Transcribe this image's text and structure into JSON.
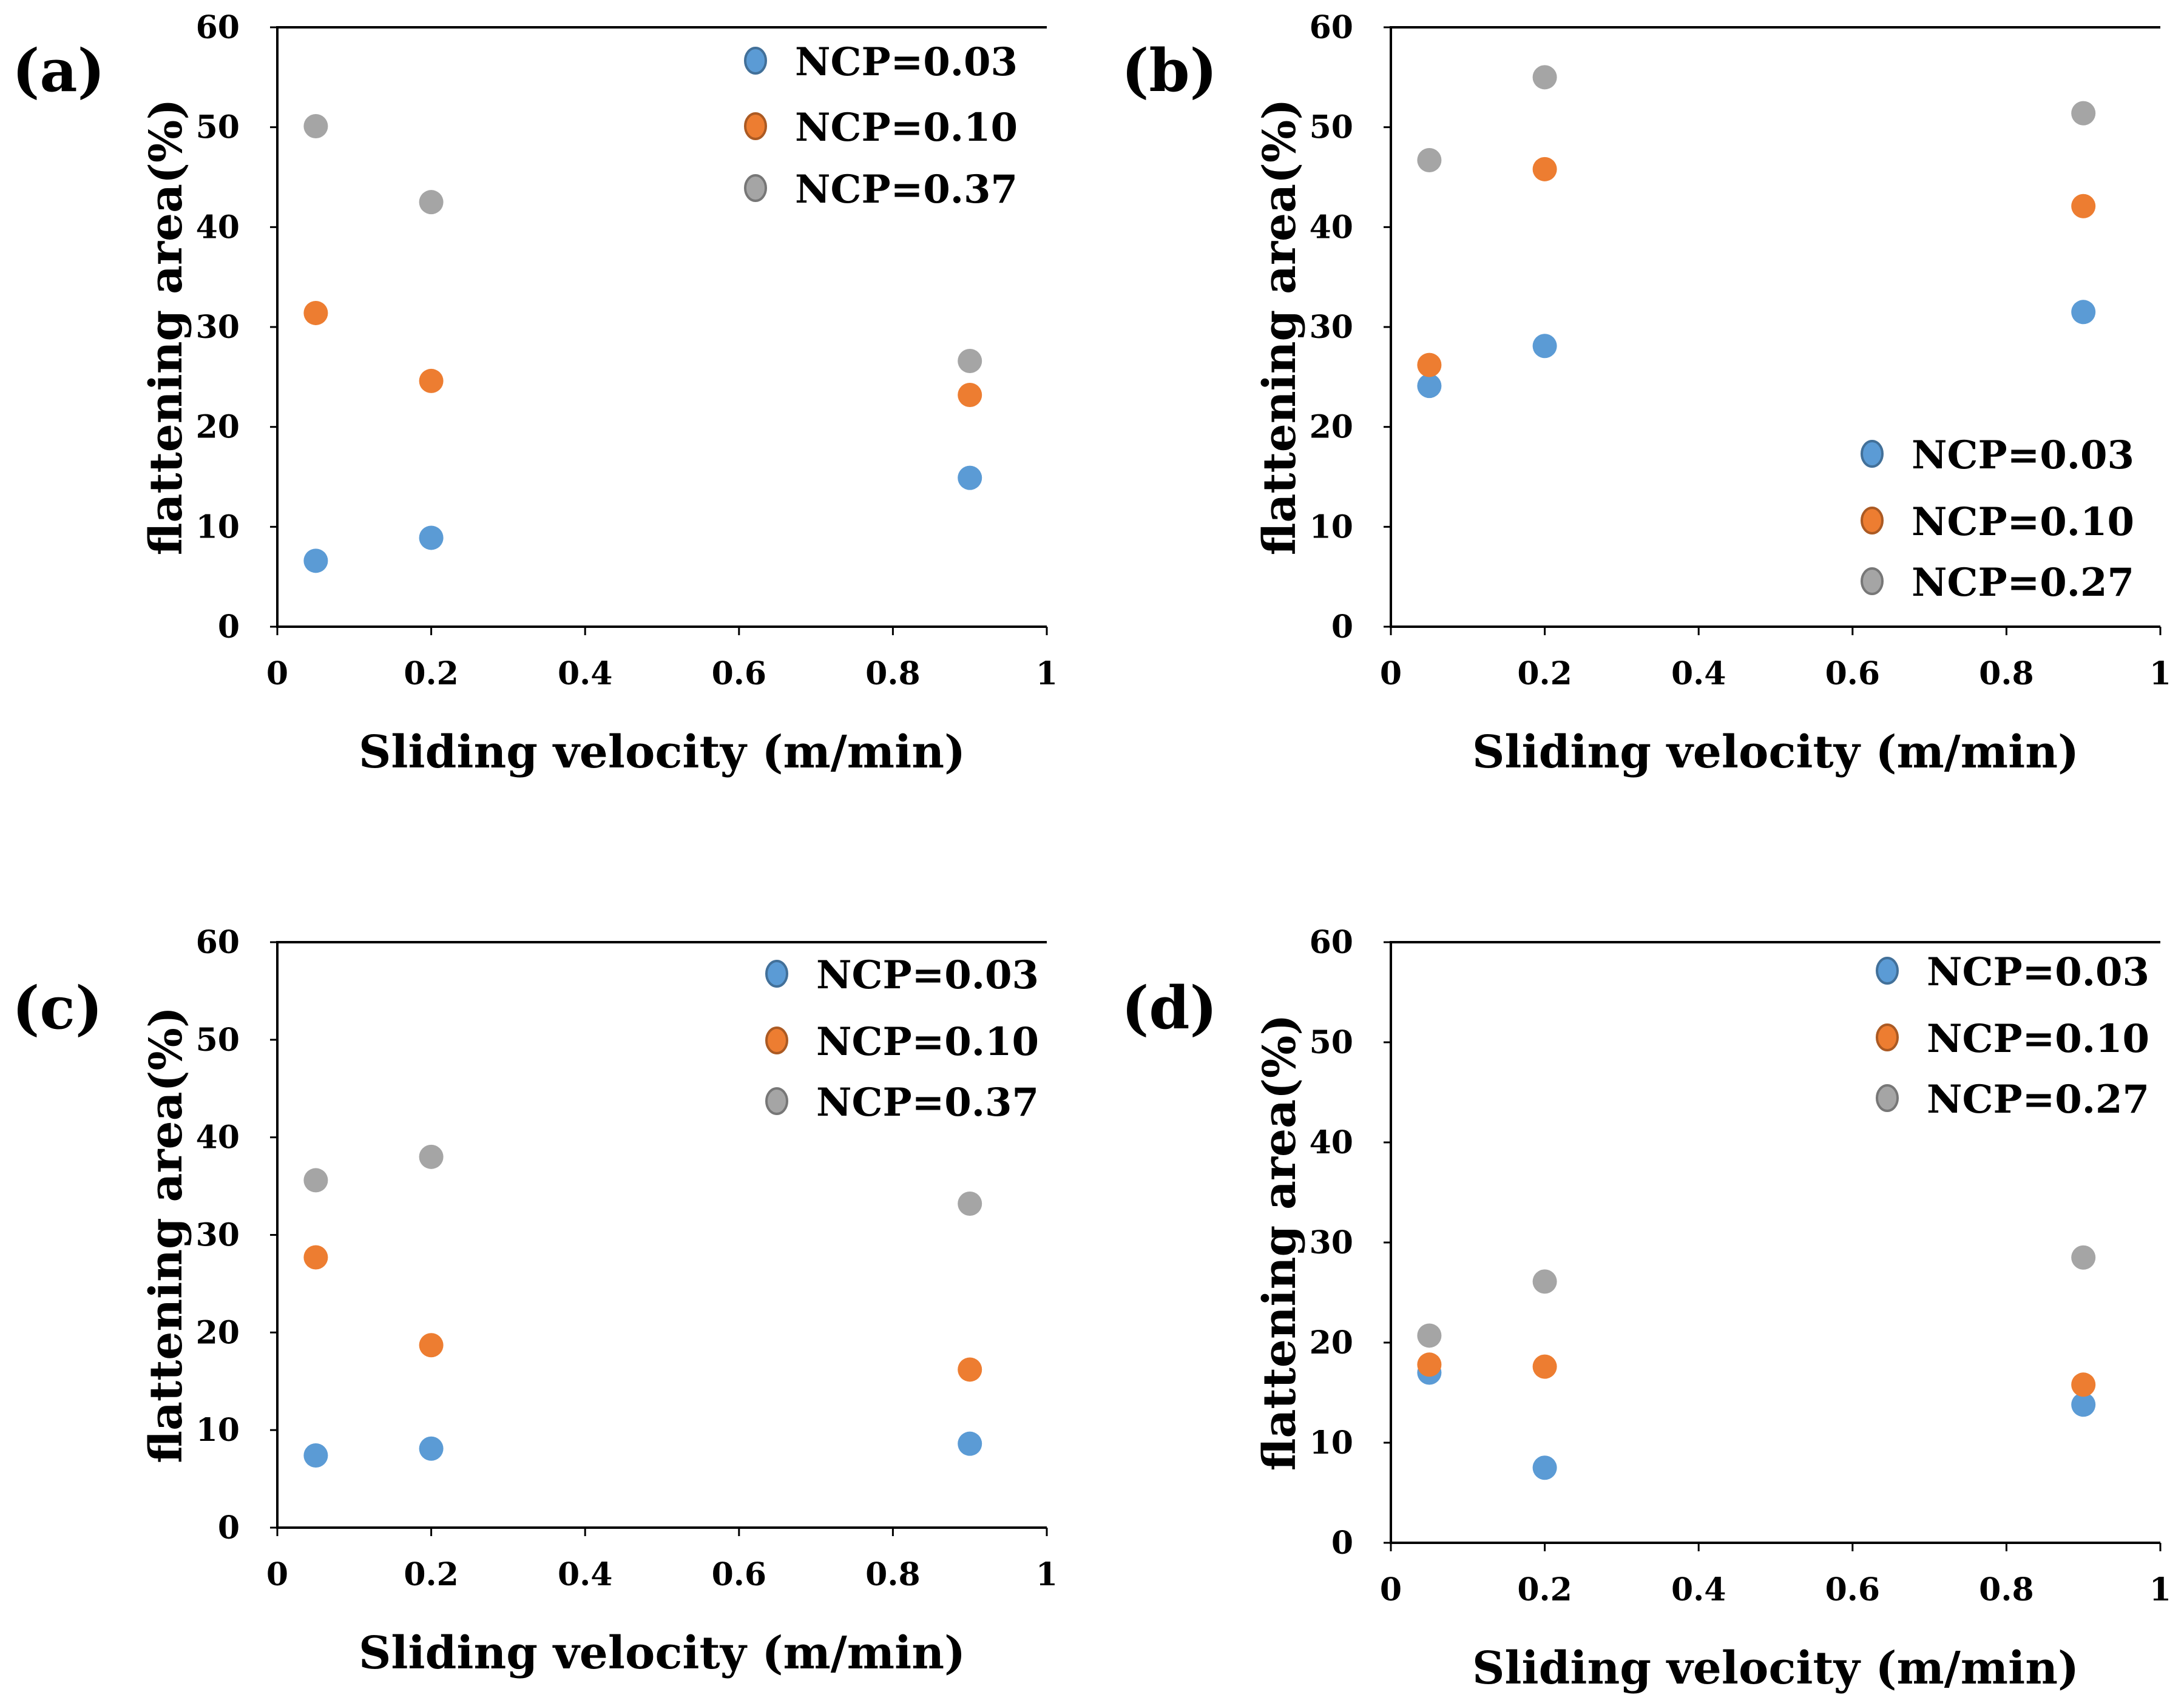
{
  "chart_data": [
    {
      "type": "scatter",
      "panel_label": "(a)",
      "xlabel": "Sliding velocity (m/min)",
      "ylabel": "flattening area(%)",
      "xlim": [
        0,
        1
      ],
      "ylim": [
        0,
        60
      ],
      "xticks": [
        0,
        0.2,
        0.4,
        0.6,
        0.8,
        1
      ],
      "xtick_labels": [
        "0",
        "0.2",
        "0.4",
        "0.6",
        "0.8",
        "1"
      ],
      "yticks": [
        0,
        10,
        20,
        30,
        40,
        50,
        60
      ],
      "ytick_labels": [
        "0",
        "10",
        "20",
        "30",
        "40",
        "50",
        "60"
      ],
      "legend_position": "top-right",
      "series": [
        {
          "name": "NCP=0.03",
          "color": "#5b9bd5",
          "x": [
            0.05,
            0.2,
            0.9
          ],
          "y": [
            6.6,
            8.9,
            14.9
          ]
        },
        {
          "name": "NCP=0.10",
          "color": "#ed7d31",
          "x": [
            0.05,
            0.2,
            0.9
          ],
          "y": [
            31.4,
            24.6,
            23.2
          ]
        },
        {
          "name": "NCP=0.37",
          "color": "#a5a5a5",
          "x": [
            0.05,
            0.2,
            0.9
          ],
          "y": [
            50.1,
            42.5,
            26.6
          ]
        }
      ]
    },
    {
      "type": "scatter",
      "panel_label": "(b)",
      "xlabel": "Sliding velocity (m/min)",
      "ylabel": "flattening area(%)",
      "xlim": [
        0,
        1
      ],
      "ylim": [
        0,
        60
      ],
      "xticks": [
        0,
        0.2,
        0.4,
        0.6,
        0.8,
        1
      ],
      "xtick_labels": [
        "0",
        "0.2",
        "0.4",
        "0.6",
        "0.8",
        "1"
      ],
      "yticks": [
        0,
        10,
        20,
        30,
        40,
        50,
        60
      ],
      "ytick_labels": [
        "0",
        "10",
        "20",
        "30",
        "40",
        "50",
        "60"
      ],
      "legend_position": "bottom-right",
      "series": [
        {
          "name": "NCP=0.03",
          "color": "#5b9bd5",
          "x": [
            0.05,
            0.2,
            0.9
          ],
          "y": [
            24.1,
            28.1,
            31.5
          ]
        },
        {
          "name": "NCP=0.10",
          "color": "#ed7d31",
          "x": [
            0.05,
            0.2,
            0.9
          ],
          "y": [
            26.2,
            45.8,
            42.1
          ]
        },
        {
          "name": "NCP=0.27",
          "color": "#a5a5a5",
          "x": [
            0.05,
            0.2,
            0.9
          ],
          "y": [
            46.7,
            55.0,
            51.4
          ]
        }
      ]
    },
    {
      "type": "scatter",
      "panel_label": "(c)",
      "xlabel": "Sliding velocity (m/min)",
      "ylabel": "flattening area(%)",
      "xlim": [
        0,
        1
      ],
      "ylim": [
        0,
        60
      ],
      "xticks": [
        0,
        0.2,
        0.4,
        0.6,
        0.8,
        1
      ],
      "xtick_labels": [
        "0",
        "0.2",
        "0.4",
        "0.6",
        "0.8",
        "1"
      ],
      "yticks": [
        0,
        10,
        20,
        30,
        40,
        50,
        60
      ],
      "ytick_labels": [
        "0",
        "10",
        "20",
        "30",
        "40",
        "50",
        "60"
      ],
      "legend_position": "top-right",
      "series": [
        {
          "name": "NCP=0.03",
          "color": "#5b9bd5",
          "x": [
            0.05,
            0.2,
            0.9
          ],
          "y": [
            7.4,
            8.1,
            8.6
          ]
        },
        {
          "name": "NCP=0.10",
          "color": "#ed7d31",
          "x": [
            0.05,
            0.2,
            0.9
          ],
          "y": [
            27.7,
            18.7,
            16.2
          ]
        },
        {
          "name": "NCP=0.37",
          "color": "#a5a5a5",
          "x": [
            0.05,
            0.2,
            0.9
          ],
          "y": [
            35.6,
            38.0,
            33.2
          ]
        }
      ]
    },
    {
      "type": "scatter",
      "panel_label": "(d)",
      "xlabel": "Sliding velocity (m/min)",
      "ylabel": "flattening area(%)",
      "xlim": [
        0,
        1
      ],
      "ylim": [
        0,
        60
      ],
      "xticks": [
        0,
        0.2,
        0.4,
        0.6,
        0.8,
        1
      ],
      "xtick_labels": [
        "0",
        "0.2",
        "0.4",
        "0.6",
        "0.8",
        "1"
      ],
      "yticks": [
        0,
        10,
        20,
        30,
        40,
        50,
        60
      ],
      "ytick_labels": [
        "0",
        "10",
        "20",
        "30",
        "40",
        "50",
        "60"
      ],
      "legend_position": "top-right",
      "series": [
        {
          "name": "NCP=0.03",
          "color": "#5b9bd5",
          "x": [
            0.05,
            0.2,
            0.9
          ],
          "y": [
            17.0,
            7.5,
            13.8
          ]
        },
        {
          "name": "NCP=0.10",
          "color": "#ed7d31",
          "x": [
            0.05,
            0.2,
            0.9
          ],
          "y": [
            17.8,
            17.6,
            15.8
          ]
        },
        {
          "name": "NCP=0.27",
          "color": "#a5a5a5",
          "x": [
            0.05,
            0.2,
            0.9
          ],
          "y": [
            20.7,
            26.1,
            28.5
          ]
        }
      ]
    }
  ]
}
